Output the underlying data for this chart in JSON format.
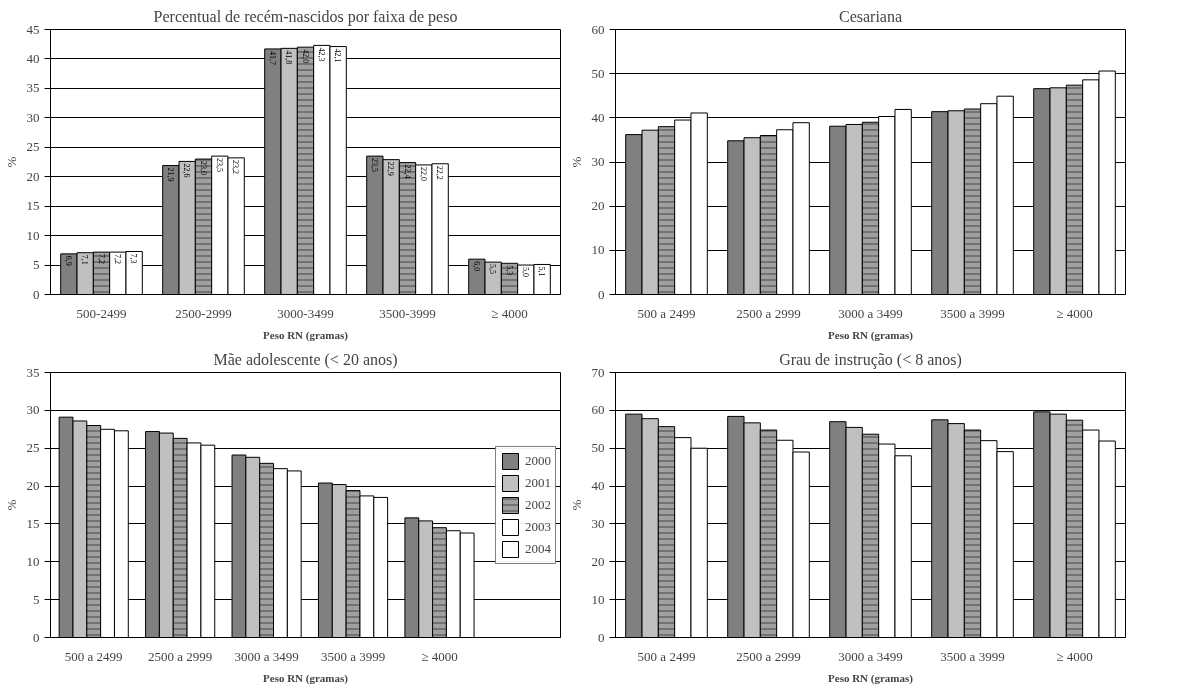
{
  "chart_data": [
    {
      "type": "bar",
      "title": "Percentual de recém-nascidos por faixa de peso",
      "xlabel": "Peso RN (gramas)",
      "ylabel": "%",
      "categories": [
        "500-2499",
        "2500-2999",
        "3000-3499",
        "3500-3999",
        "≥ 4000"
      ],
      "ylim": [
        0,
        45
      ],
      "yticks": [
        0,
        5,
        10,
        15,
        20,
        25,
        30,
        35,
        40,
        45
      ],
      "grid": "y",
      "series": [
        {
          "color": "#808080",
          "values": [
            6.9,
            21.9,
            41.7,
            23.5,
            6.0
          ],
          "value_labels": [
            "6,9",
            "21,9",
            "41,7",
            "23,5",
            "6,0"
          ]
        },
        {
          "color": "#c0c0c0",
          "values": [
            7.1,
            22.6,
            41.8,
            22.9,
            5.5
          ],
          "value_labels": [
            "7,1",
            "22,6",
            "41,8",
            "22,9",
            "5,5"
          ]
        },
        {
          "color": "#a0a0a0",
          "values": [
            7.2,
            23.0,
            42.0,
            22.4,
            5.3
          ],
          "value_labels": [
            "7,2",
            "23,0",
            "42,0",
            "22,4",
            "5,3"
          ]
        },
        {
          "color": "#ffffff",
          "values": [
            7.2,
            23.5,
            42.3,
            22.0,
            5.0
          ],
          "value_labels": [
            "7,2",
            "23,5",
            "42,3",
            "22,0",
            "5,0"
          ]
        },
        {
          "color": "#ffffff",
          "values": [
            7.3,
            23.2,
            42.1,
            22.2,
            5.1
          ],
          "value_labels": [
            "7,3",
            "23,2",
            "42,1",
            "22,2",
            "5,1"
          ]
        }
      ]
    },
    {
      "type": "bar",
      "title": "Cesariana",
      "xlabel": "Peso RN (gramas)",
      "ylabel": "%",
      "categories": [
        "500 a 2499",
        "2500 a 2999",
        "3000 a 3499",
        "3500 a 3999",
        "≥ 4000"
      ],
      "ylim": [
        0,
        60
      ],
      "yticks": [
        0,
        10,
        20,
        30,
        40,
        50,
        60
      ],
      "grid": "y",
      "series": [
        {
          "color": "#808080",
          "values": [
            36.2,
            34.8,
            38.1,
            41.4,
            46.6
          ]
        },
        {
          "color": "#c0c0c0",
          "values": [
            37.2,
            35.5,
            38.5,
            41.6,
            46.8
          ]
        },
        {
          "color": "#a0a0a0",
          "values": [
            38.0,
            36.0,
            39.0,
            42.0,
            47.4
          ]
        },
        {
          "color": "#ffffff",
          "values": [
            39.5,
            37.3,
            40.3,
            43.2,
            48.6
          ]
        },
        {
          "color": "#ffffff",
          "values": [
            41.1,
            38.9,
            41.9,
            44.9,
            50.6
          ]
        }
      ]
    },
    {
      "type": "bar",
      "title": "Mãe adolescente (< 20 anos)",
      "xlabel": "Peso RN (gramas)",
      "ylabel": "%",
      "categories": [
        "500 a 2499",
        "2500 a 2999",
        "3000 a 3499",
        "3500 a 3999",
        "≥ 4000"
      ],
      "ylim": [
        0,
        35
      ],
      "yticks": [
        0,
        5,
        10,
        15,
        20,
        25,
        30,
        35
      ],
      "grid": "y",
      "legend": "right",
      "series": [
        {
          "name": "2000",
          "color": "#808080",
          "values": [
            29.1,
            27.2,
            24.1,
            20.4,
            15.8
          ]
        },
        {
          "name": "2001",
          "color": "#c0c0c0",
          "values": [
            28.6,
            27.0,
            23.8,
            20.2,
            15.4
          ]
        },
        {
          "name": "2002",
          "color": "#a0a0a0",
          "values": [
            28.0,
            26.3,
            23.0,
            19.4,
            14.5
          ]
        },
        {
          "name": "2003",
          "color": "#ffffff",
          "values": [
            27.5,
            25.7,
            22.3,
            18.7,
            14.1
          ]
        },
        {
          "name": "2004",
          "color": "#ffffff",
          "values": [
            27.3,
            25.4,
            22.0,
            18.5,
            13.8
          ]
        }
      ]
    },
    {
      "type": "bar",
      "title": "Grau de instrução (< 8 anos)",
      "xlabel": "Peso RN (gramas)",
      "ylabel": "%",
      "categories": [
        "500 a 2499",
        "2500 a 2999",
        "3000 a 3499",
        "3500 a 3999",
        "≥ 4000"
      ],
      "ylim": [
        0,
        70
      ],
      "yticks": [
        0,
        10,
        20,
        30,
        40,
        50,
        60,
        70
      ],
      "grid": "y",
      "series": [
        {
          "color": "#808080",
          "values": [
            59.0,
            58.4,
            57.0,
            57.5,
            59.6
          ]
        },
        {
          "color": "#c0c0c0",
          "values": [
            57.8,
            56.7,
            55.5,
            56.5,
            59.0
          ]
        },
        {
          "color": "#a0a0a0",
          "values": [
            55.7,
            54.8,
            53.7,
            54.8,
            57.4
          ]
        },
        {
          "color": "#ffffff",
          "values": [
            52.8,
            52.1,
            51.1,
            52.0,
            54.8
          ]
        },
        {
          "color": "#ffffff",
          "values": [
            50.0,
            49.0,
            48.0,
            49.1,
            51.9
          ]
        }
      ]
    }
  ]
}
